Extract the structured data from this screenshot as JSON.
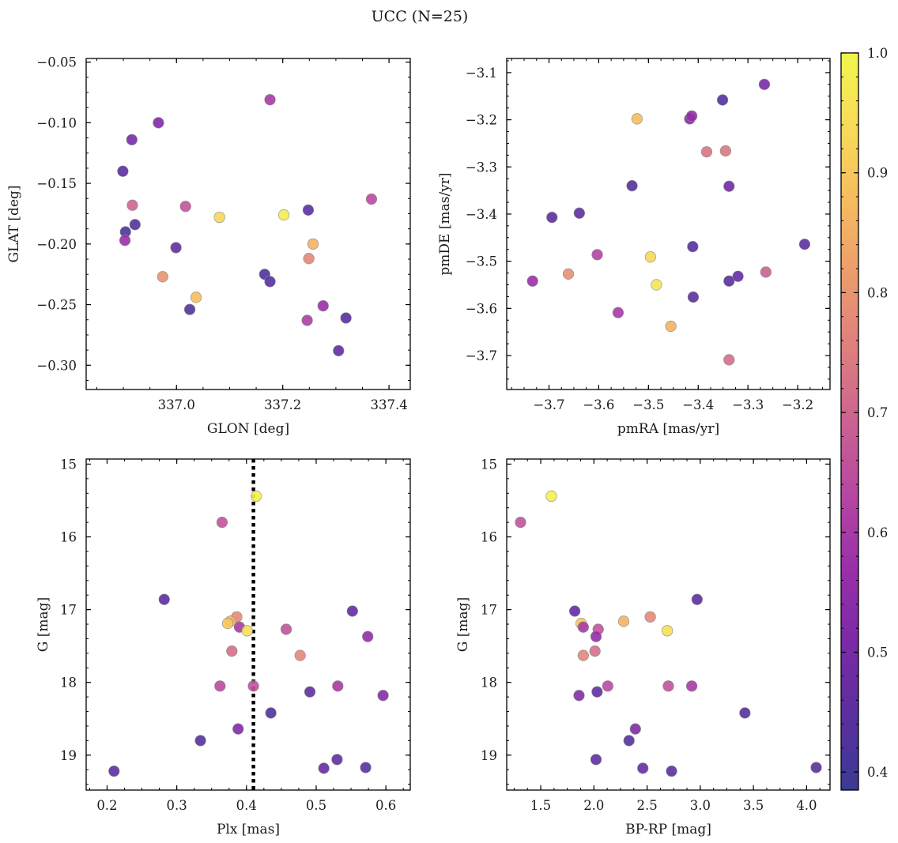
{
  "figure": {
    "title": "UCC (N=25)"
  },
  "colorbar": {
    "colormap": "plasma",
    "range": [
      0.385,
      1.0
    ],
    "ticks": [
      0.4,
      0.5,
      0.6,
      0.7,
      0.8,
      0.9,
      1.0
    ],
    "tick_labels": [
      "0.4",
      "0.5",
      "0.6",
      "0.7",
      "0.8",
      "0.9",
      "1.0"
    ]
  },
  "chart_data": [
    {
      "type": "scatter",
      "xlabel": "GLON [deg]",
      "ylabel": "GLAT [deg]",
      "xlim": [
        336.83,
        337.44
      ],
      "ylim": [
        -0.32,
        -0.047
      ],
      "xticks": [
        337.0,
        337.2,
        337.4
      ],
      "xtick_labels": [
        "337.0",
        "337.2",
        "337.4"
      ],
      "yticks": [
        -0.3,
        -0.25,
        -0.2,
        -0.15,
        -0.1,
        -0.05
      ],
      "ytick_labels": [
        "−0.30",
        "−0.25",
        "−0.20",
        "−0.15",
        "−0.10",
        "−0.05"
      ],
      "y_inverted": false,
      "points": [
        {
          "x": 337.176,
          "y": -0.081,
          "c": 0.6
        },
        {
          "x": 336.966,
          "y": -0.1,
          "c": 0.52
        },
        {
          "x": 336.916,
          "y": -0.114,
          "c": 0.5
        },
        {
          "x": 336.899,
          "y": -0.14,
          "c": 0.45
        },
        {
          "x": 336.917,
          "y": -0.168,
          "c": 0.7
        },
        {
          "x": 337.017,
          "y": -0.169,
          "c": 0.66
        },
        {
          "x": 337.081,
          "y": -0.178,
          "c": 0.93
        },
        {
          "x": 337.202,
          "y": -0.176,
          "c": 0.98
        },
        {
          "x": 337.367,
          "y": -0.163,
          "c": 0.64
        },
        {
          "x": 337.248,
          "y": -0.172,
          "c": 0.45
        },
        {
          "x": 336.904,
          "y": -0.19,
          "c": 0.42
        },
        {
          "x": 336.922,
          "y": -0.184,
          "c": 0.43
        },
        {
          "x": 336.903,
          "y": -0.197,
          "c": 0.57
        },
        {
          "x": 336.999,
          "y": -0.203,
          "c": 0.46
        },
        {
          "x": 337.257,
          "y": -0.2,
          "c": 0.86
        },
        {
          "x": 337.249,
          "y": -0.212,
          "c": 0.77
        },
        {
          "x": 336.974,
          "y": -0.227,
          "c": 0.8
        },
        {
          "x": 337.166,
          "y": -0.225,
          "c": 0.42
        },
        {
          "x": 337.176,
          "y": -0.231,
          "c": 0.44
        },
        {
          "x": 337.037,
          "y": -0.244,
          "c": 0.88
        },
        {
          "x": 337.025,
          "y": -0.254,
          "c": 0.43
        },
        {
          "x": 337.276,
          "y": -0.251,
          "c": 0.57
        },
        {
          "x": 337.246,
          "y": -0.263,
          "c": 0.61
        },
        {
          "x": 337.319,
          "y": -0.261,
          "c": 0.44
        },
        {
          "x": 337.305,
          "y": -0.288,
          "c": 0.46
        }
      ]
    },
    {
      "type": "scatter",
      "xlabel": "pmRA [mas/yr]",
      "ylabel": "pmDE [mas/yr]",
      "xlim": [
        -3.785,
        -3.135
      ],
      "ylim": [
        -3.772,
        -3.07
      ],
      "xticks": [
        -3.7,
        -3.6,
        -3.5,
        -3.4,
        -3.3,
        -3.2
      ],
      "xtick_labels": [
        "−3.7",
        "−3.6",
        "−3.5",
        "−3.4",
        "−3.3",
        "−3.2"
      ],
      "yticks": [
        -3.7,
        -3.6,
        -3.5,
        -3.4,
        -3.3,
        -3.2,
        -3.1
      ],
      "ytick_labels": [
        "−3.7",
        "−3.6",
        "−3.5",
        "−3.4",
        "−3.3",
        "−3.2",
        "−3.1"
      ],
      "y_inverted": false,
      "points": [
        {
          "x": -3.267,
          "y": -3.125,
          "c": 0.5
        },
        {
          "x": -3.351,
          "y": -3.158,
          "c": 0.43
        },
        {
          "x": -3.523,
          "y": -3.198,
          "c": 0.88
        },
        {
          "x": -3.417,
          "y": -3.198,
          "c": 0.53
        },
        {
          "x": -3.413,
          "y": -3.192,
          "c": 0.55
        },
        {
          "x": -3.383,
          "y": -3.268,
          "c": 0.73
        },
        {
          "x": -3.345,
          "y": -3.266,
          "c": 0.74
        },
        {
          "x": -3.533,
          "y": -3.34,
          "c": 0.43
        },
        {
          "x": -3.338,
          "y": -3.341,
          "c": 0.49
        },
        {
          "x": -3.694,
          "y": -3.407,
          "c": 0.45
        },
        {
          "x": -3.639,
          "y": -3.398,
          "c": 0.45
        },
        {
          "x": -3.411,
          "y": -3.469,
          "c": 0.44
        },
        {
          "x": -3.186,
          "y": -3.464,
          "c": 0.45
        },
        {
          "x": -3.603,
          "y": -3.486,
          "c": 0.62
        },
        {
          "x": -3.496,
          "y": -3.491,
          "c": 0.93
        },
        {
          "x": -3.733,
          "y": -3.542,
          "c": 0.57
        },
        {
          "x": -3.661,
          "y": -3.527,
          "c": 0.79
        },
        {
          "x": -3.484,
          "y": -3.55,
          "c": 0.96
        },
        {
          "x": -3.338,
          "y": -3.542,
          "c": 0.45
        },
        {
          "x": -3.32,
          "y": -3.532,
          "c": 0.46
        },
        {
          "x": -3.264,
          "y": -3.523,
          "c": 0.69
        },
        {
          "x": -3.41,
          "y": -3.576,
          "c": 0.45
        },
        {
          "x": -3.561,
          "y": -3.609,
          "c": 0.6
        },
        {
          "x": -3.455,
          "y": -3.638,
          "c": 0.86
        },
        {
          "x": -3.338,
          "y": -3.709,
          "c": 0.72
        }
      ]
    },
    {
      "type": "scatter",
      "xlabel": "Plx [mas]",
      "ylabel": "G [mag]",
      "xlim": [
        0.17,
        0.635
      ],
      "ylim": [
        19.48,
        14.93
      ],
      "xticks": [
        0.2,
        0.3,
        0.4,
        0.5,
        0.6
      ],
      "xtick_labels": [
        "0.2",
        "0.3",
        "0.4",
        "0.5",
        "0.6"
      ],
      "yticks": [
        15,
        16,
        17,
        18,
        19
      ],
      "ytick_labels": [
        "15",
        "16",
        "17",
        "18",
        "19"
      ],
      "y_inverted": true,
      "vline": {
        "x": 0.41,
        "style": "dotted"
      },
      "points": [
        {
          "x": 0.414,
          "y": 15.44,
          "c": 0.99
        },
        {
          "x": 0.365,
          "y": 15.8,
          "c": 0.66
        },
        {
          "x": 0.282,
          "y": 16.86,
          "c": 0.45
        },
        {
          "x": 0.552,
          "y": 17.02,
          "c": 0.46
        },
        {
          "x": 0.386,
          "y": 17.1,
          "c": 0.78
        },
        {
          "x": 0.377,
          "y": 17.16,
          "c": 0.86
        },
        {
          "x": 0.373,
          "y": 17.19,
          "c": 0.9
        },
        {
          "x": 0.39,
          "y": 17.24,
          "c": 0.6
        },
        {
          "x": 0.401,
          "y": 17.29,
          "c": 0.95
        },
        {
          "x": 0.457,
          "y": 17.27,
          "c": 0.66
        },
        {
          "x": 0.574,
          "y": 17.37,
          "c": 0.56
        },
        {
          "x": 0.379,
          "y": 17.57,
          "c": 0.72
        },
        {
          "x": 0.477,
          "y": 17.63,
          "c": 0.77
        },
        {
          "x": 0.362,
          "y": 18.05,
          "c": 0.64
        },
        {
          "x": 0.41,
          "y": 18.05,
          "c": 0.66
        },
        {
          "x": 0.531,
          "y": 18.05,
          "c": 0.6
        },
        {
          "x": 0.491,
          "y": 18.13,
          "c": 0.46
        },
        {
          "x": 0.596,
          "y": 18.18,
          "c": 0.53
        },
        {
          "x": 0.435,
          "y": 18.42,
          "c": 0.43
        },
        {
          "x": 0.388,
          "y": 18.64,
          "c": 0.52
        },
        {
          "x": 0.334,
          "y": 18.8,
          "c": 0.44
        },
        {
          "x": 0.53,
          "y": 19.06,
          "c": 0.46
        },
        {
          "x": 0.21,
          "y": 19.22,
          "c": 0.45
        },
        {
          "x": 0.511,
          "y": 19.18,
          "c": 0.47
        },
        {
          "x": 0.571,
          "y": 19.17,
          "c": 0.44
        }
      ]
    },
    {
      "type": "scatter",
      "xlabel": "BP-RP [mag]",
      "ylabel": "G [mag]",
      "xlim": [
        1.18,
        4.22
      ],
      "ylim": [
        19.48,
        14.93
      ],
      "xticks": [
        1.5,
        2.0,
        2.5,
        3.0,
        3.5,
        4.0
      ],
      "xtick_labels": [
        "1.5",
        "2.0",
        "2.5",
        "3.0",
        "3.5",
        "4.0"
      ],
      "yticks": [
        15,
        16,
        17,
        18,
        19
      ],
      "ytick_labels": [
        "15",
        "16",
        "17",
        "18",
        "19"
      ],
      "y_inverted": true,
      "points": [
        {
          "x": 1.6,
          "y": 15.44,
          "c": 0.99
        },
        {
          "x": 1.31,
          "y": 15.8,
          "c": 0.66
        },
        {
          "x": 2.97,
          "y": 16.86,
          "c": 0.45
        },
        {
          "x": 1.82,
          "y": 17.02,
          "c": 0.46
        },
        {
          "x": 2.53,
          "y": 17.1,
          "c": 0.78
        },
        {
          "x": 2.28,
          "y": 17.16,
          "c": 0.86
        },
        {
          "x": 1.88,
          "y": 17.19,
          "c": 0.9
        },
        {
          "x": 1.9,
          "y": 17.24,
          "c": 0.6
        },
        {
          "x": 2.69,
          "y": 17.29,
          "c": 0.95
        },
        {
          "x": 2.04,
          "y": 17.27,
          "c": 0.66
        },
        {
          "x": 2.02,
          "y": 17.37,
          "c": 0.56
        },
        {
          "x": 2.01,
          "y": 17.57,
          "c": 0.72
        },
        {
          "x": 1.9,
          "y": 17.63,
          "c": 0.77
        },
        {
          "x": 2.13,
          "y": 18.05,
          "c": 0.64
        },
        {
          "x": 2.7,
          "y": 18.05,
          "c": 0.66
        },
        {
          "x": 2.92,
          "y": 18.05,
          "c": 0.6
        },
        {
          "x": 2.03,
          "y": 18.13,
          "c": 0.46
        },
        {
          "x": 1.86,
          "y": 18.18,
          "c": 0.53
        },
        {
          "x": 3.42,
          "y": 18.42,
          "c": 0.43
        },
        {
          "x": 2.39,
          "y": 18.64,
          "c": 0.52
        },
        {
          "x": 2.33,
          "y": 18.8,
          "c": 0.44
        },
        {
          "x": 2.02,
          "y": 19.06,
          "c": 0.46
        },
        {
          "x": 2.73,
          "y": 19.22,
          "c": 0.45
        },
        {
          "x": 2.46,
          "y": 19.18,
          "c": 0.47
        },
        {
          "x": 4.09,
          "y": 19.17,
          "c": 0.44
        }
      ]
    }
  ]
}
